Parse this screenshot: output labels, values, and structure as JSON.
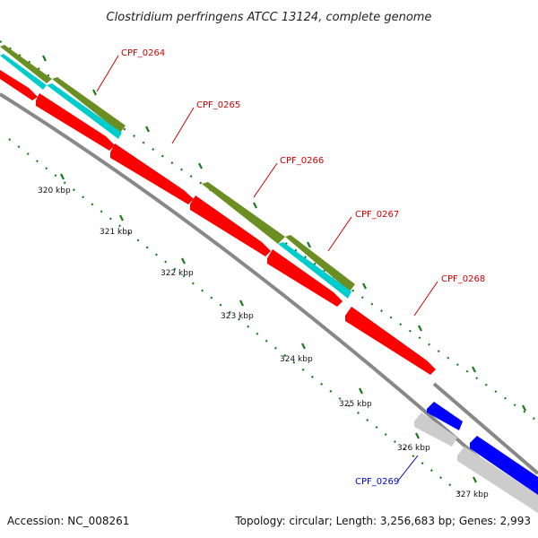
{
  "title": "Clostridium perfringens ATCC 13124, complete genome",
  "footer": {
    "accession": "Accession: NC_008261",
    "stats": "Topology: circular; Length: 3,256,683 bp; Genes: 2,993"
  },
  "ticks": [
    "320 kbp",
    "321 kbp",
    "322 kbp",
    "323 kbp",
    "324 kbp",
    "325 kbp",
    "326 kbp",
    "327 kbp"
  ],
  "genes": [
    {
      "label": "CPF_0264",
      "color": "#cc0000"
    },
    {
      "label": "CPF_0265",
      "color": "#cc0000"
    },
    {
      "label": "CPF_0266",
      "color": "#cc0000"
    },
    {
      "label": "CPF_0267",
      "color": "#cc0000"
    },
    {
      "label": "CPF_0268",
      "color": "#cc0000"
    },
    {
      "label": "CPF_0269",
      "color": "#0000cc"
    }
  ],
  "colors": {
    "cds_forward": "#ff0000",
    "cds_reverse": "#0000ff",
    "feature_olive": "#6b8e23",
    "feature_cyan": "#00cccc",
    "feature_gray": "#cccccc",
    "backbone": "#888888",
    "tick": "#1a7a1a"
  }
}
